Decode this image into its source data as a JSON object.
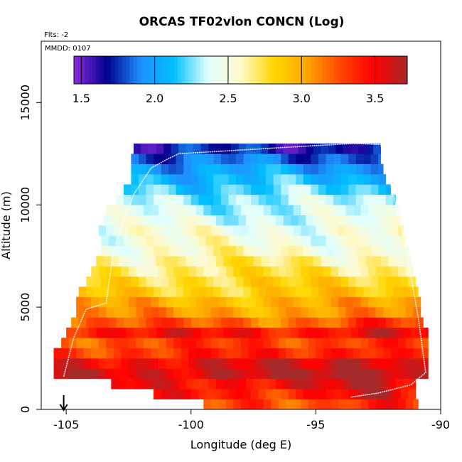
{
  "chart_data": {
    "type": "heatmap",
    "title": "ORCAS TF02vlon CONCN (Log)",
    "flights_label": "Flts: -2",
    "date_label": "MMDD: 0107",
    "xlabel": "Longitude (deg E)",
    "ylabel": "Altitude (m)",
    "xlim": [
      -106,
      -90
    ],
    "ylim": [
      0,
      18000
    ],
    "x_ticks": [
      -105,
      -100,
      -95,
      -90
    ],
    "x_tick_labels": [
      "-105",
      "-100",
      "-95",
      "-90"
    ],
    "y_ticks": [
      0,
      5000,
      10000,
      15000
    ],
    "y_tick_labels": [
      "0",
      "5000",
      "10000",
      "15000"
    ],
    "colorbar": {
      "range": [
        1.45,
        3.72
      ],
      "ticks": [
        1.5,
        2.0,
        2.5,
        3.0,
        3.5
      ],
      "tick_labels": [
        "1.5",
        "2.0",
        "2.5",
        "3.0",
        "3.5"
      ]
    },
    "colormap": [
      "#8a2be2",
      "#00008b",
      "#1e90ff",
      "#00bfff",
      "#e0ffff",
      "#fffacd",
      "#ffd700",
      "#ffa500",
      "#ff4500",
      "#ff0000",
      "#a52a2a"
    ],
    "arrow_marker_x": -105.1,
    "altitude_levels": [
      250,
      750,
      1250,
      1750,
      2250,
      2750,
      3250,
      3750,
      4250,
      4750,
      5250,
      5750,
      6250,
      6750,
      7250,
      7750,
      8250,
      8750,
      9250,
      9750,
      10250,
      10750,
      11250,
      11750,
      12250,
      12750
    ],
    "row_lon_extent": [
      [
        -99.5,
        -90.9
      ],
      [
        -101.5,
        -91.0
      ],
      [
        -103.2,
        -91.0
      ],
      [
        -105.5,
        -90.5
      ],
      [
        -105.5,
        -90.5
      ],
      [
        -105.5,
        -90.5
      ],
      [
        -105.2,
        -90.5
      ],
      [
        -105.0,
        -90.5
      ],
      [
        -104.8,
        -90.7
      ],
      [
        -104.6,
        -90.8
      ],
      [
        -104.6,
        -90.8
      ],
      [
        -104.5,
        -90.9
      ],
      [
        -104.2,
        -91.0
      ],
      [
        -104.0,
        -91.1
      ],
      [
        -103.8,
        -91.2
      ],
      [
        -103.6,
        -91.3
      ],
      [
        -103.6,
        -91.4
      ],
      [
        -103.7,
        -91.5
      ],
      [
        -103.5,
        -91.6
      ],
      [
        -103.4,
        -91.7
      ],
      [
        -103.0,
        -91.8
      ],
      [
        -102.7,
        -92.0
      ],
      [
        -102.4,
        -92.2
      ],
      [
        -102.4,
        -92.3
      ],
      [
        -102.4,
        -92.4
      ],
      [
        -102.3,
        -92.4
      ]
    ],
    "row_values": [
      3.25,
      3.4,
      3.5,
      3.62,
      3.55,
      3.35,
      3.28,
      3.45,
      3.2,
      3.05,
      2.98,
      2.85,
      2.8,
      2.72,
      2.65,
      2.55,
      2.5,
      2.48,
      2.4,
      2.35,
      2.3,
      2.2,
      2.1,
      2.0,
      1.85,
      1.7
    ],
    "aircraft_track": [
      [
        -105.1,
        1600
      ],
      [
        -104.7,
        3500
      ],
      [
        -104.2,
        4900
      ],
      [
        -103.4,
        5200
      ],
      [
        -103.1,
        7800
      ],
      [
        -102.3,
        10500
      ],
      [
        -101.6,
        11800
      ],
      [
        -101.0,
        12200
      ],
      [
        -100.5,
        12500
      ],
      [
        -95.0,
        12900
      ],
      [
        -93.5,
        13000
      ],
      [
        -92.4,
        12950
      ],
      [
        -92.0,
        11000
      ],
      [
        -91.4,
        8000
      ],
      [
        -90.9,
        4500
      ],
      [
        -90.6,
        1800
      ],
      [
        -91.2,
        1200
      ],
      [
        -92.5,
        800
      ],
      [
        -93.6,
        600
      ]
    ]
  }
}
